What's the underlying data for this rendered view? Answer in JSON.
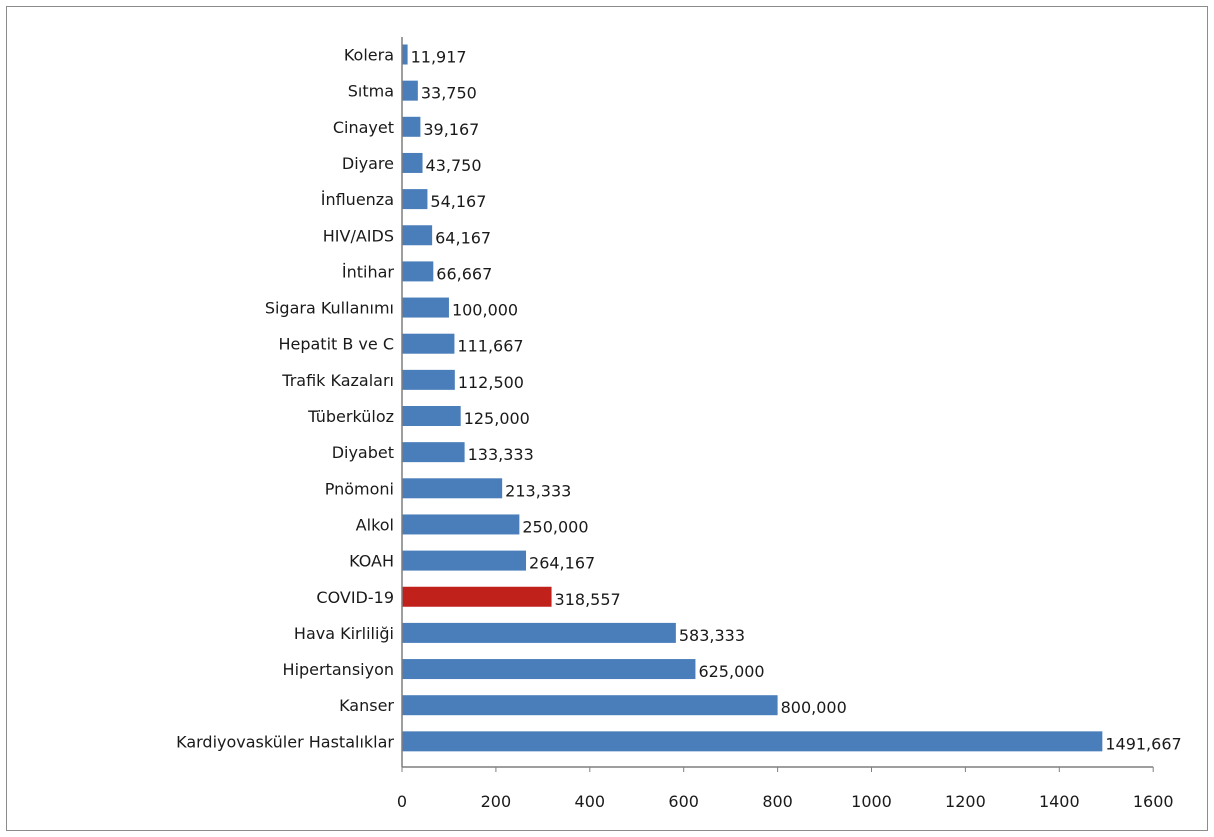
{
  "chart_data": {
    "type": "bar",
    "orientation": "horizontal",
    "title": "",
    "xlabel": "",
    "ylabel": "",
    "xlim": [
      0,
      1600
    ],
    "xticks": [
      0,
      200,
      400,
      600,
      800,
      1000,
      1200,
      1400,
      1600
    ],
    "xtick_labels": [
      "0",
      "200",
      "400",
      "600",
      "800",
      "1000",
      "1200",
      "1400",
      "1600"
    ],
    "grid": false,
    "legend": "none",
    "colors": {
      "default_bar": "#4a7ebb",
      "highlight_bar": "#c0211b",
      "axis": "#7f7f7f",
      "frame": "#8c8c8c"
    },
    "highlight_category": "COVID-19",
    "categories": [
      "Kolera",
      "Sıtma",
      "Cinayet",
      "Diyare",
      "İnfluenza",
      "HIV/AIDS",
      "İntihar",
      "Sigara Kullanımı",
      "Hepatit B ve C",
      "Trafik Kazaları",
      "Tüberküloz",
      "Diyabet",
      "Pnömoni",
      "Alkol",
      "KOAH",
      "COVID-19",
      "Hava Kirliliği",
      "Hipertansiyon",
      "Kanser",
      "Kardiyovasküler Hastalıklar"
    ],
    "values": [
      11.917,
      33.75,
      39.167,
      43.75,
      54.167,
      64.167,
      66.667,
      100.0,
      111.667,
      112.5,
      125.0,
      133.333,
      213.333,
      250.0,
      264.167,
      318.557,
      583.333,
      625.0,
      800.0,
      1491.667
    ],
    "value_labels": [
      "11,917",
      "33,750",
      "39,167",
      "43,750",
      "54,167",
      "64,167",
      "66,667",
      "100,000",
      "111,667",
      "112,500",
      "125,000",
      "133,333",
      "213,333",
      "250,000",
      "264,167",
      "318,557",
      "583,333",
      "625,000",
      "800,000",
      "1491,667"
    ]
  }
}
